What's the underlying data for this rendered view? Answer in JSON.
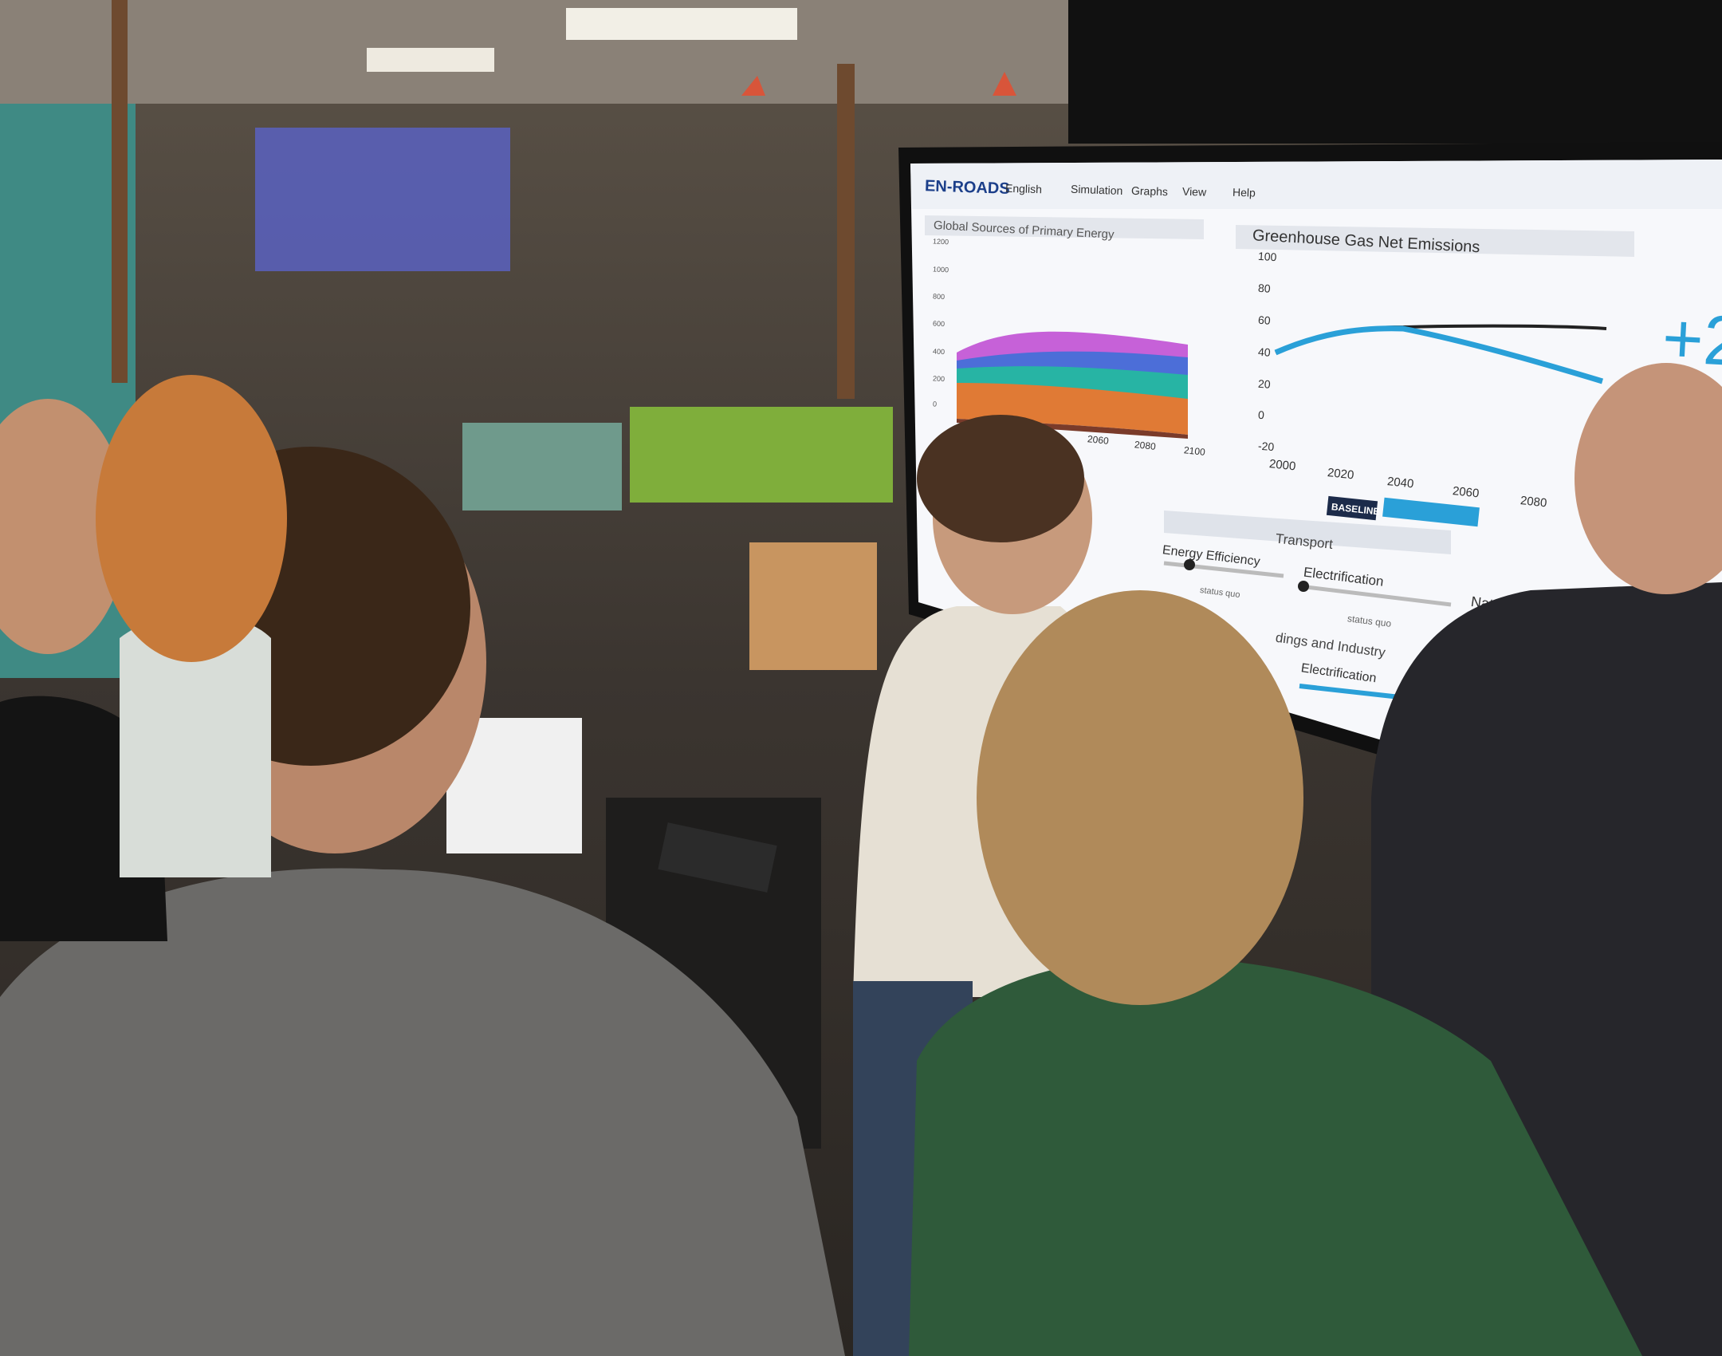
{
  "menu": {
    "logo": "EN-ROADS",
    "items": [
      "English",
      "Simulation",
      "Graphs",
      "View",
      "Help"
    ]
  },
  "left_graph": {
    "title": "Global Sources of Primary Energy",
    "y_ticks": [
      "1200",
      "1000",
      "800",
      "600",
      "400",
      "200",
      "0"
    ],
    "x_ticks": [
      "2060",
      "2080",
      "2100"
    ]
  },
  "right_graph": {
    "title": "Greenhouse Gas Net Emissions",
    "y_ticks": [
      "100",
      "80",
      "60",
      "40",
      "20",
      "0",
      "-20"
    ],
    "x_ticks": [
      "2000",
      "2020",
      "2040",
      "2060",
      "2080"
    ],
    "legend": "BASELINE"
  },
  "big_number": "+2",
  "controls": {
    "energy_efficiency": {
      "label": "Energy Efficiency",
      "status": "status quo"
    },
    "transport": {
      "title": "Transport",
      "label": "Electrification",
      "status": "status quo"
    },
    "nature_based": {
      "label": "Nature-Based"
    },
    "buildings": {
      "title": "dings and Industry",
      "label": "Electrification"
    }
  }
}
